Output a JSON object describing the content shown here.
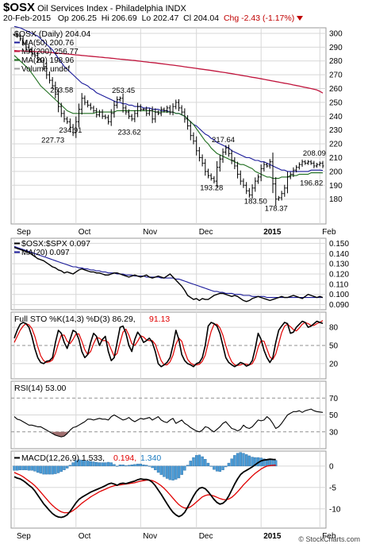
{
  "header": {
    "symbol": "$OSX",
    "name": "Oil Services Index - Philadelphia  INDX",
    "date": "20-Feb-2015",
    "open": "Op 206.25",
    "high": "Hi 206.69",
    "low": "Lo 202.47",
    "close": "Cl 204.04",
    "change": "Chg -2.43 (-1.17%)",
    "brand": "© StockCharts.com"
  },
  "colors": {
    "price": "#000000",
    "ma50": "#1a1a9a",
    "ma200": "#c0143c",
    "ma20": "#1e6e1e",
    "ratio": "#000000",
    "ratio_ma": "#1a1a9a",
    "sto_k": "#000000",
    "sto_d": "#e00000",
    "rsi": "#000000",
    "rsi_fill": "#a07070",
    "macd": "#000000",
    "signal": "#e00000",
    "hist": "#4a9bd6",
    "grid": "#d7d7d7"
  },
  "x_axis": {
    "labels": [
      "Sep",
      "Oct",
      "Nov",
      "Dec",
      "2015",
      "Feb"
    ],
    "bold": [
      false,
      false,
      false,
      false,
      true,
      false
    ],
    "bar_index": [
      0,
      21,
      43,
      62,
      84,
      104
    ]
  },
  "chart_data": [
    {
      "type": "bar",
      "panel": "price",
      "title": "$OSX (Daily) 204.04",
      "legend": [
        {
          "label": "MA(50) 200.76",
          "color": "#1a1a9a"
        },
        {
          "label": "MA(200) 256.77",
          "color": "#c0143c"
        },
        {
          "label": "MA(20) 198.96",
          "color": "#1e6e1e"
        },
        {
          "label": "Volume undef",
          "color": "#a0a0a0"
        }
      ],
      "ylim": [
        162,
        304
      ],
      "y_ticks": [
        180,
        190,
        200,
        210,
        220,
        230,
        240,
        250,
        260,
        270,
        280,
        290,
        300
      ],
      "annotations": [
        {
          "label": "253.58",
          "bar": 16,
          "value": 253.58
        },
        {
          "label": "234.91",
          "bar": 19,
          "value": 234.91
        },
        {
          "label": "227.73",
          "bar": 13,
          "value": 227.73
        },
        {
          "label": "253.45",
          "bar": 37,
          "value": 253.45
        },
        {
          "label": "233.62",
          "bar": 39,
          "value": 233.62
        },
        {
          "label": "217.64",
          "bar": 71,
          "value": 217.64
        },
        {
          "label": "193.28",
          "bar": 67,
          "value": 193.28
        },
        {
          "label": "183.50",
          "bar": 82,
          "value": 183.5
        },
        {
          "label": "178.37",
          "bar": 89,
          "value": 178.37
        },
        {
          "label": "208.09",
          "bar": 102,
          "value": 208.09
        },
        {
          "label": "196.82",
          "bar": 101,
          "value": 196.82
        }
      ],
      "close": [
        299,
        298,
        296,
        293,
        290,
        288,
        285,
        284,
        281,
        280,
        276,
        270,
        266,
        262,
        256,
        247,
        242,
        238,
        236,
        232,
        228,
        236,
        245,
        253,
        250,
        248,
        246,
        244,
        241,
        243,
        240,
        239,
        236,
        242,
        248,
        252,
        253,
        246,
        243,
        240,
        238,
        242,
        247,
        245,
        245,
        242,
        244,
        238,
        243,
        242,
        245,
        244,
        246,
        243,
        247,
        250,
        246,
        243,
        238,
        233,
        226,
        222,
        215,
        210,
        206,
        200,
        197,
        195,
        193,
        203,
        209,
        214,
        217,
        213,
        208,
        204,
        198,
        193,
        190,
        186,
        183,
        188,
        193,
        196,
        202,
        205,
        204,
        207,
        191,
        180,
        181,
        184,
        188,
        196,
        198,
        201,
        203,
        205,
        207,
        206,
        207,
        206,
        204,
        205,
        206,
        204
      ],
      "ma50": [
        305,
        304.5,
        304,
        303,
        302,
        301,
        300,
        299,
        298,
        296,
        294,
        292,
        290,
        288,
        285,
        282,
        279,
        276,
        274,
        272,
        270,
        268,
        266,
        264,
        263,
        262,
        260,
        259,
        257,
        256,
        255,
        254,
        253,
        252,
        251,
        250,
        250,
        249,
        249,
        248,
        248,
        247,
        247,
        247,
        246,
        246,
        246,
        245,
        245,
        245,
        244,
        244,
        244,
        243,
        243,
        242,
        242,
        241,
        240,
        238,
        236,
        234,
        233,
        231,
        229,
        227,
        226,
        224,
        223,
        221,
        220,
        219,
        218,
        217,
        215,
        214,
        213,
        212,
        211,
        210,
        210,
        209,
        208,
        208,
        207,
        207,
        206,
        205,
        204,
        203,
        202,
        201,
        201,
        200,
        200,
        200,
        200,
        200,
        200,
        200,
        200,
        201,
        201,
        201,
        201,
        200.76
      ],
      "ma200": [
        287.5,
        287.4,
        287.3,
        287.2,
        287.1,
        287.0,
        286.9,
        286.8,
        286.7,
        286.6,
        286.5,
        286.4,
        286.2,
        286.0,
        285.8,
        285.6,
        285.4,
        285.2,
        285.0,
        284.8,
        284.6,
        284.4,
        284.2,
        284.0,
        283.8,
        283.6,
        283.4,
        283.2,
        283.0,
        282.8,
        282.6,
        282.4,
        282.2,
        282.0,
        281.8,
        281.5,
        281.3,
        281.1,
        280.9,
        280.7,
        280.5,
        280.3,
        280.0,
        279.8,
        279.5,
        279.3,
        279.0,
        278.8,
        278.6,
        278.3,
        278.0,
        277.8,
        277.5,
        277.2,
        277.0,
        276.7,
        276.4,
        276.1,
        275.8,
        275.5,
        275.2,
        274.9,
        274.6,
        274.3,
        274.0,
        273.7,
        273.4,
        273.1,
        272.8,
        272.5,
        272.1,
        271.8,
        271.5,
        271.1,
        270.8,
        270.4,
        270.1,
        269.7,
        269.3,
        269.0,
        268.6,
        268.2,
        267.9,
        267.5,
        267.1,
        266.7,
        266.3,
        265.9,
        265.5,
        265.1,
        264.7,
        264.3,
        263.9,
        263.5,
        263.1,
        262.6,
        262.2,
        261.8,
        261.3,
        260.9,
        260.5,
        260.0,
        259.5,
        259.0,
        258.0,
        256.77
      ],
      "ma20": [
        284,
        282,
        280,
        278,
        276,
        274,
        271,
        268,
        265,
        262,
        260,
        258,
        256,
        254,
        252,
        250,
        248,
        246,
        244,
        243,
        242,
        242,
        242,
        242,
        242,
        242,
        242,
        242,
        243,
        243,
        243,
        243,
        243,
        243,
        243,
        244,
        244,
        244,
        244,
        244,
        244,
        244,
        244,
        244,
        244,
        244,
        244,
        244,
        243,
        243,
        243,
        243,
        243,
        243,
        243,
        242,
        242,
        241,
        240,
        238,
        236,
        234,
        231,
        228,
        225,
        222,
        220,
        217,
        215,
        213,
        212,
        211,
        210,
        209,
        208,
        207,
        206,
        205,
        205,
        204,
        203,
        202,
        200,
        199,
        198,
        197,
        196,
        196,
        195,
        195,
        195,
        196,
        196,
        196,
        197,
        197,
        197,
        198,
        198,
        198,
        198,
        199,
        199,
        199,
        199,
        198.96
      ]
    },
    {
      "type": "line",
      "panel": "ratio",
      "title": "$OSX:$SPX 0.097",
      "legend": [
        {
          "label": "MA(20) 0.097",
          "color": "#1a1a9a"
        }
      ],
      "ylim": [
        0.085,
        0.155
      ],
      "y_ticks": [
        0.09,
        0.1,
        0.11,
        0.12,
        0.13,
        0.14,
        0.15
      ],
      "y_tick_labels": [
        "0.090",
        "0.100",
        "0.110",
        "0.120",
        "0.130",
        "0.140",
        "0.150"
      ],
      "values": [
        0.146,
        0.145,
        0.144,
        0.143,
        0.142,
        0.141,
        0.139,
        0.137,
        0.135,
        0.134,
        0.133,
        0.131,
        0.129,
        0.127,
        0.126,
        0.124,
        0.123,
        0.121,
        0.122,
        0.121,
        0.12,
        0.122,
        0.124,
        0.125,
        0.124,
        0.123,
        0.122,
        0.122,
        0.121,
        0.121,
        0.12,
        0.119,
        0.119,
        0.12,
        0.121,
        0.121,
        0.12,
        0.119,
        0.118,
        0.117,
        0.118,
        0.119,
        0.118,
        0.117,
        0.118,
        0.119,
        0.117,
        0.116,
        0.117,
        0.118,
        0.117,
        0.116,
        0.118,
        0.12,
        0.117,
        0.114,
        0.111,
        0.108,
        0.104,
        0.099,
        0.097,
        0.095,
        0.096,
        0.094,
        0.096,
        0.095,
        0.095,
        0.097,
        0.099,
        0.1,
        0.101,
        0.101,
        0.1,
        0.099,
        0.098,
        0.099,
        0.098,
        0.096,
        0.094,
        0.093,
        0.094,
        0.096,
        0.097,
        0.098,
        0.097,
        0.096,
        0.095,
        0.094,
        0.095,
        0.096,
        0.097,
        0.098,
        0.097,
        0.097,
        0.098,
        0.099,
        0.098,
        0.097,
        0.096,
        0.098,
        0.1,
        0.099,
        0.098,
        0.097,
        0.098,
        0.097
      ],
      "ma": [
        0.147,
        0.146,
        0.145,
        0.144,
        0.143,
        0.142,
        0.141,
        0.14,
        0.139,
        0.138,
        0.137,
        0.136,
        0.135,
        0.134,
        0.133,
        0.132,
        0.131,
        0.13,
        0.129,
        0.128,
        0.127,
        0.127,
        0.126,
        0.126,
        0.125,
        0.125,
        0.124,
        0.124,
        0.123,
        0.123,
        0.122,
        0.122,
        0.121,
        0.121,
        0.121,
        0.12,
        0.12,
        0.12,
        0.119,
        0.119,
        0.119,
        0.118,
        0.118,
        0.118,
        0.118,
        0.117,
        0.117,
        0.117,
        0.117,
        0.117,
        0.116,
        0.116,
        0.116,
        0.116,
        0.116,
        0.115,
        0.115,
        0.114,
        0.113,
        0.112,
        0.111,
        0.11,
        0.109,
        0.108,
        0.107,
        0.106,
        0.105,
        0.104,
        0.103,
        0.103,
        0.102,
        0.102,
        0.101,
        0.101,
        0.101,
        0.1,
        0.1,
        0.1,
        0.099,
        0.099,
        0.099,
        0.098,
        0.098,
        0.098,
        0.098,
        0.098,
        0.097,
        0.097,
        0.097,
        0.097,
        0.097,
        0.097,
        0.097,
        0.097,
        0.097,
        0.097,
        0.097,
        0.097,
        0.097,
        0.097,
        0.097,
        0.097,
        0.097,
        0.097,
        0.097,
        0.097
      ]
    },
    {
      "type": "line",
      "panel": "stochastic",
      "title": "Full STO %K(14,3) %D(3) 86.29,",
      "title_d": "91.13",
      "ylim": [
        -5,
        105
      ],
      "y_ticks": [
        20,
        50,
        80
      ],
      "k": [
        62,
        75,
        85,
        88,
        86,
        80,
        65,
        45,
        30,
        22,
        20,
        24,
        25,
        30,
        55,
        75,
        70,
        55,
        45,
        60,
        75,
        72,
        60,
        40,
        30,
        35,
        55,
        70,
        65,
        50,
        60,
        65,
        40,
        25,
        30,
        55,
        80,
        82,
        70,
        50,
        40,
        60,
        72,
        65,
        55,
        58,
        62,
        55,
        40,
        20,
        15,
        18,
        22,
        30,
        50,
        75,
        60,
        35,
        25,
        20,
        18,
        15,
        20,
        22,
        30,
        50,
        82,
        88,
        86,
        82,
        70,
        50,
        30,
        22,
        18,
        15,
        18,
        22,
        20,
        16,
        18,
        25,
        45,
        70,
        60,
        42,
        30,
        22,
        30,
        55,
        75,
        82,
        88,
        86,
        70,
        72,
        80,
        85,
        90,
        88,
        80,
        82,
        86,
        90,
        88,
        86.29
      ],
      "d": [
        55,
        65,
        75,
        82,
        86,
        84,
        78,
        65,
        48,
        33,
        25,
        22,
        23,
        26,
        37,
        53,
        67,
        67,
        57,
        53,
        60,
        69,
        69,
        57,
        43,
        35,
        40,
        53,
        63,
        62,
        58,
        58,
        55,
        43,
        32,
        37,
        55,
        72,
        77,
        67,
        53,
        50,
        57,
        66,
        64,
        59,
        58,
        58,
        52,
        38,
        25,
        18,
        18,
        23,
        34,
        52,
        62,
        57,
        40,
        27,
        21,
        18,
        18,
        19,
        24,
        34,
        54,
        73,
        85,
        85,
        79,
        67,
        50,
        34,
        23,
        18,
        17,
        18,
        20,
        19,
        18,
        20,
        29,
        47,
        58,
        57,
        44,
        31,
        27,
        36,
        53,
        71,
        82,
        85,
        81,
        76,
        74,
        79,
        85,
        88,
        86,
        83,
        83,
        86,
        88,
        91.13
      ]
    },
    {
      "type": "line",
      "panel": "rsi",
      "title": "RSI(14) 53.00",
      "ylim": [
        10,
        90
      ],
      "y_ticks": [
        30,
        50,
        70
      ],
      "values": [
        48,
        45,
        44,
        42,
        40,
        38,
        38,
        37,
        36,
        36,
        34,
        32,
        30,
        28,
        26,
        25,
        24,
        25,
        28,
        32,
        35,
        36,
        38,
        40,
        42,
        45,
        45,
        44,
        45,
        46,
        45,
        45,
        44,
        48,
        50,
        48,
        46,
        44,
        45,
        47,
        44,
        42,
        44,
        46,
        45,
        46,
        47,
        44,
        46,
        48,
        44,
        42,
        41,
        44,
        46,
        40,
        42,
        44,
        40,
        38,
        35,
        33,
        31,
        30,
        32,
        36,
        35,
        32,
        30,
        33,
        36,
        40,
        42,
        38,
        34,
        33,
        31,
        33,
        38,
        35,
        34,
        36,
        40,
        44,
        43,
        44,
        48,
        45,
        40,
        34,
        36,
        40,
        45,
        50,
        52,
        54,
        54,
        55,
        53,
        55,
        56,
        57,
        55,
        54,
        53.5,
        53
      ]
    },
    {
      "type": "line",
      "panel": "macd",
      "title": "MACD(12,26,9) 1.533,",
      "title_signal": "0.194,",
      "title_hist": "1.340",
      "ylim": [
        -14.5,
        3.5
      ],
      "y_ticks": [
        -10,
        -5,
        0
      ],
      "macd": [
        -2.5,
        -2.8,
        -3.0,
        -3.4,
        -3.9,
        -4.5,
        -5.0,
        -5.8,
        -6.8,
        -7.8,
        -8.8,
        -9.6,
        -10.4,
        -11.1,
        -11.6,
        -11.9,
        -12.0,
        -11.8,
        -11.4,
        -10.6,
        -9.6,
        -8.6,
        -7.8,
        -7.3,
        -6.9,
        -6.5,
        -6.1,
        -5.8,
        -5.5,
        -5.2,
        -4.9,
        -4.6,
        -4.2,
        -4.0,
        -4.2,
        -4.5,
        -4.1,
        -4.0,
        -4.1,
        -3.9,
        -3.7,
        -3.5,
        -3.2,
        -3.0,
        -3.1,
        -3.1,
        -3.3,
        -3.8,
        -4.6,
        -5.6,
        -6.6,
        -7.7,
        -8.8,
        -9.9,
        -10.8,
        -11.4,
        -11.8,
        -11.5,
        -10.8,
        -9.6,
        -8.3,
        -7.0,
        -5.9,
        -5.2,
        -5.0,
        -5.3,
        -6.0,
        -6.9,
        -7.8,
        -8.5,
        -8.9,
        -8.7,
        -8.1,
        -7.0,
        -5.6,
        -4.2,
        -3.0,
        -2.0,
        -1.4,
        -1.0,
        -0.6,
        -0.2,
        0.3,
        0.8,
        1.2,
        1.4,
        1.5,
        1.6,
        1.55,
        1.533
      ],
      "signal": [
        -1.5,
        -1.8,
        -2.1,
        -2.5,
        -3.0,
        -3.5,
        -4.0,
        -4.6,
        -5.3,
        -6.1,
        -6.9,
        -7.7,
        -8.5,
        -9.2,
        -9.8,
        -10.3,
        -10.7,
        -10.9,
        -10.9,
        -10.8,
        -10.4,
        -9.9,
        -9.3,
        -8.7,
        -8.2,
        -7.7,
        -7.2,
        -6.8,
        -6.4,
        -6.0,
        -5.7,
        -5.4,
        -5.1,
        -4.8,
        -4.6,
        -4.5,
        -4.4,
        -4.3,
        -4.2,
        -4.1,
        -4.0,
        -3.9,
        -3.7,
        -3.5,
        -3.4,
        -3.3,
        -3.3,
        -3.4,
        -3.7,
        -4.1,
        -4.6,
        -5.2,
        -5.9,
        -6.7,
        -7.5,
        -8.3,
        -9.0,
        -9.5,
        -9.8,
        -9.8,
        -9.5,
        -9.0,
        -8.4,
        -7.8,
        -7.2,
        -6.9,
        -6.7,
        -6.8,
        -7.0,
        -7.3,
        -7.6,
        -7.8,
        -7.9,
        -7.7,
        -7.3,
        -6.7,
        -6.0,
        -5.2,
        -4.4,
        -3.7,
        -3.0,
        -2.3,
        -1.7,
        -1.2,
        -0.7,
        -0.3,
        0.0,
        0.1,
        0.17,
        0.194
      ]
    }
  ]
}
